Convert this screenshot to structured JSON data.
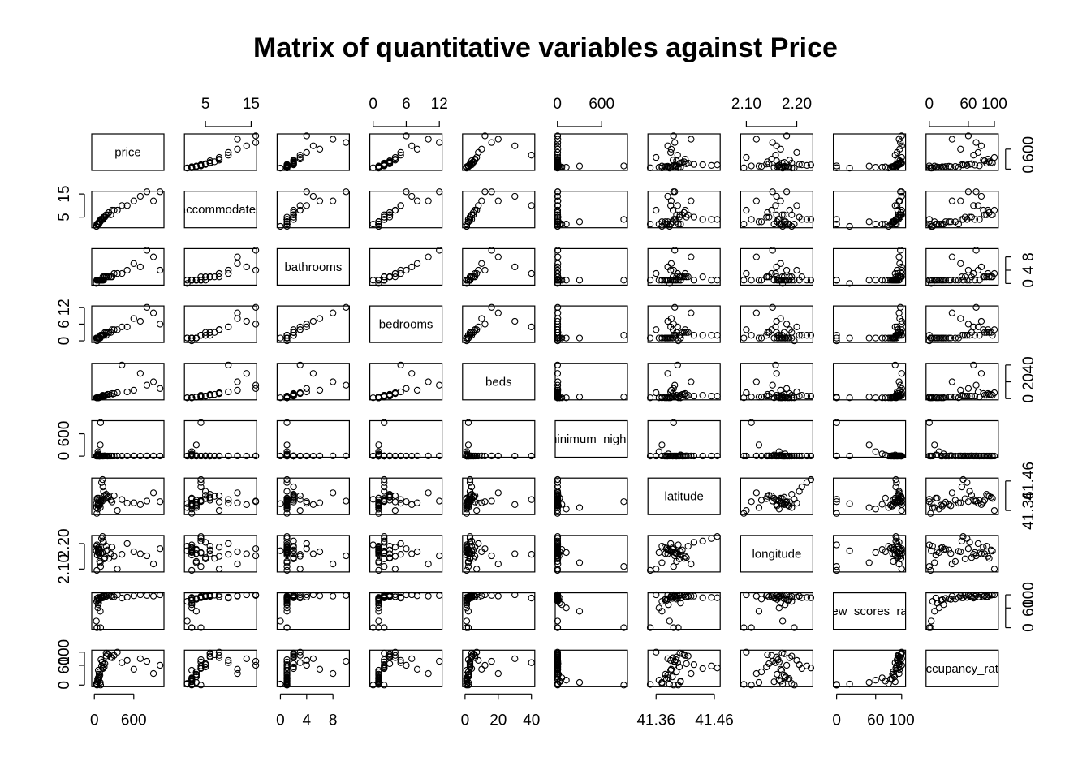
{
  "chart_data": {
    "type": "pairs",
    "title": "Matrix of quantitative variables against Price",
    "color": "#000000",
    "grid": false,
    "variables": [
      {
        "name": "price",
        "lim": [
          -40,
          1060
        ],
        "ticks": [
          0,
          600
        ],
        "values": [
          60,
          120,
          85,
          250,
          45,
          1000,
          300,
          70,
          150,
          35,
          900,
          500,
          95,
          200,
          55,
          130,
          80,
          700,
          40,
          160,
          75,
          350,
          65,
          110,
          800,
          50,
          180,
          30,
          420,
          90,
          140,
          600,
          100,
          58,
          220,
          38,
          125,
          270,
          72,
          180
        ]
      },
      {
        "name": "accommodates",
        "lim": [
          0.4,
          16.2
        ],
        "ticks": [
          5,
          15
        ],
        "values": [
          2,
          4,
          3,
          6,
          2,
          16,
          8,
          2,
          5,
          1,
          12,
          10,
          4,
          6,
          2,
          4,
          3,
          14,
          2,
          5,
          3,
          8,
          2,
          4,
          16,
          2,
          6,
          1,
          10,
          3,
          5,
          12,
          4,
          2,
          7,
          2,
          4,
          8,
          3,
          6
        ]
      },
      {
        "name": "bathrooms",
        "lim": [
          -0.5,
          10.5
        ],
        "ticks": [
          0,
          4,
          8
        ],
        "values": [
          1,
          1,
          1,
          2,
          1,
          4,
          3,
          1,
          2,
          1,
          8,
          4,
          1,
          2,
          1,
          2,
          1,
          5,
          1,
          2,
          1,
          3,
          1,
          1,
          10,
          1,
          2,
          0,
          3,
          1,
          1,
          6,
          1,
          1,
          2,
          1,
          1,
          2,
          1,
          2
        ]
      },
      {
        "name": "bedrooms",
        "lim": [
          -0.6,
          12.5
        ],
        "ticks": [
          0,
          6,
          12
        ],
        "values": [
          1,
          2,
          1,
          3,
          1,
          6,
          4,
          1,
          2,
          1,
          10,
          5,
          2,
          3,
          1,
          2,
          1,
          7,
          0,
          3,
          1,
          4,
          1,
          2,
          12,
          1,
          3,
          1,
          5,
          1,
          2,
          8,
          2,
          1,
          3,
          1,
          2,
          4,
          1,
          2
        ]
      },
      {
        "name": "beds",
        "lim": [
          -1.5,
          42
        ],
        "ticks": [
          0,
          20,
          40
        ],
        "values": [
          1,
          3,
          2,
          4,
          1,
          12,
          6,
          1,
          3,
          1,
          20,
          8,
          2,
          5,
          1,
          4,
          2,
          30,
          1,
          3,
          2,
          7,
          1,
          3,
          16,
          1,
          4,
          1,
          40,
          2,
          3,
          10,
          2,
          1,
          5,
          1,
          3,
          6,
          2,
          4
        ]
      },
      {
        "name": "minimum_nights",
        "lim": [
          -30,
          950
        ],
        "ticks": [
          0,
          600
        ],
        "values": [
          2,
          3,
          1,
          2,
          31,
          3,
          2,
          1,
          4,
          2,
          5,
          3,
          900,
          1,
          120,
          2,
          1,
          2,
          3,
          7,
          1,
          2,
          30,
          2,
          4,
          1,
          3,
          2,
          2,
          300,
          2,
          5,
          1,
          60,
          2,
          1,
          3,
          2,
          14,
          2
        ]
      },
      {
        "name": "latitude",
        "lim": [
          41.346,
          41.47
        ],
        "ticks": [
          41.36,
          41.46
        ],
        "values": [
          41.385,
          41.392,
          41.38,
          41.395,
          41.402,
          41.39,
          41.41,
          41.375,
          41.4,
          41.37,
          41.42,
          41.385,
          41.39,
          41.405,
          41.365,
          41.44,
          41.395,
          41.38,
          41.398,
          41.412,
          41.388,
          41.36,
          41.402,
          41.455,
          41.392,
          41.378,
          41.415,
          41.383,
          41.397,
          41.37,
          41.425,
          41.386,
          41.394,
          41.381,
          41.408,
          41.35,
          41.465,
          41.389,
          41.376,
          41.401
        ]
      },
      {
        "name": "longitude",
        "lim": [
          2.0887,
          2.232
        ],
        "ticks": [
          {
            "value": 2.1,
            "label": "2.10"
          },
          {
            "value": 2.2,
            "label": "2.20"
          }
        ],
        "values": [
          2.17,
          2.165,
          2.175,
          2.16,
          2.155,
          2.18,
          2.15,
          2.185,
          2.14,
          2.19,
          2.12,
          2.2,
          2.11,
          2.175,
          2.165,
          2.21,
          2.13,
          2.16,
          2.195,
          2.145,
          2.178,
          2.1,
          2.168,
          2.22,
          2.152,
          2.182,
          2.19,
          2.172,
          2.158,
          2.125,
          2.205,
          2.168,
          2.163,
          2.177,
          2.142,
          2.095,
          2.228,
          2.186,
          2.161,
          2.171
        ]
      },
      {
        "name": "review_scores_rating",
        "lim": [
          -5,
          106
        ],
        "ticks": [
          0,
          60,
          100
        ],
        "values": [
          92,
          95,
          88,
          97,
          90,
          100,
          94,
          85,
          98,
          80,
          96,
          93,
          0,
          99,
          60,
          91,
          87,
          100,
          0,
          94,
          89,
          100,
          75,
          92,
          98,
          83,
          95,
          20,
          90,
          50,
          96,
          97,
          93,
          70,
          99,
          0,
          91,
          94,
          86,
          100
        ]
      },
      {
        "name": "occupancy_rate",
        "lim": [
          -5,
          106
        ],
        "ticks": [
          0,
          60,
          100
        ],
        "values": [
          45,
          70,
          30,
          85,
          10,
          60,
          90,
          20,
          55,
          5,
          35,
          75,
          0,
          95,
          15,
          50,
          40,
          80,
          0,
          65,
          25,
          100,
          12,
          58,
          72,
          18,
          88,
          3,
          68,
          8,
          62,
          48,
          77,
          22,
          92,
          2,
          52,
          83,
          33,
          97
        ]
      }
    ]
  }
}
